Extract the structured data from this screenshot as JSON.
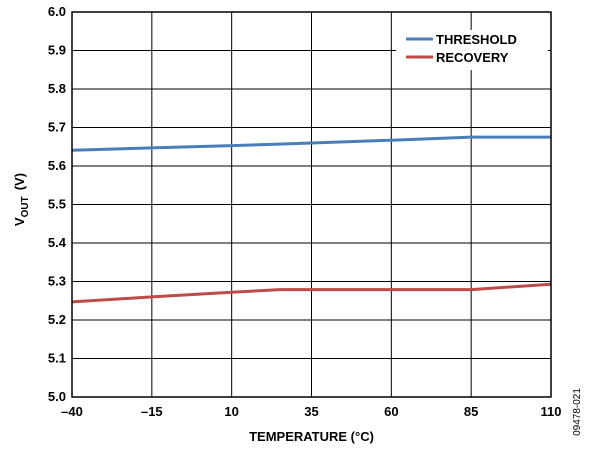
{
  "chart_data": {
    "type": "line",
    "xlabel": "TEMPERATURE (°C)",
    "ylabel_main": "V",
    "ylabel_sub": "OUT",
    "ylabel_unit": "(V)",
    "x_ticks": [
      -40,
      -15,
      10,
      35,
      60,
      85,
      110
    ],
    "x_tick_labels": [
      "–40",
      "–15",
      "10",
      "35",
      "60",
      "85",
      "110"
    ],
    "y_ticks": [
      5.0,
      5.1,
      5.2,
      5.3,
      5.4,
      5.5,
      5.6,
      5.7,
      5.8,
      5.9,
      6.0
    ],
    "y_tick_labels": [
      "5.0",
      "5.1",
      "5.2",
      "5.3",
      "5.4",
      "5.5",
      "5.6",
      "5.7",
      "5.8",
      "5.9",
      "6.0"
    ],
    "xlim": [
      -40,
      110
    ],
    "ylim": [
      5.0,
      6.0
    ],
    "grid": true,
    "legend_position": "top-right",
    "series": [
      {
        "name": "THRESHOLD",
        "color": "#4a7ebb",
        "x": [
          -40,
          -15,
          10,
          25,
          60,
          85,
          110
        ],
        "y": [
          5.641,
          5.647,
          5.653,
          5.657,
          5.667,
          5.675,
          5.675
        ]
      },
      {
        "name": "RECOVERY",
        "color": "#be4b48",
        "x": [
          -40,
          -15,
          10,
          25,
          60,
          85,
          110
        ],
        "y": [
          5.247,
          5.26,
          5.272,
          5.279,
          5.279,
          5.279,
          5.293
        ]
      }
    ],
    "figure_id": "09478-021"
  }
}
